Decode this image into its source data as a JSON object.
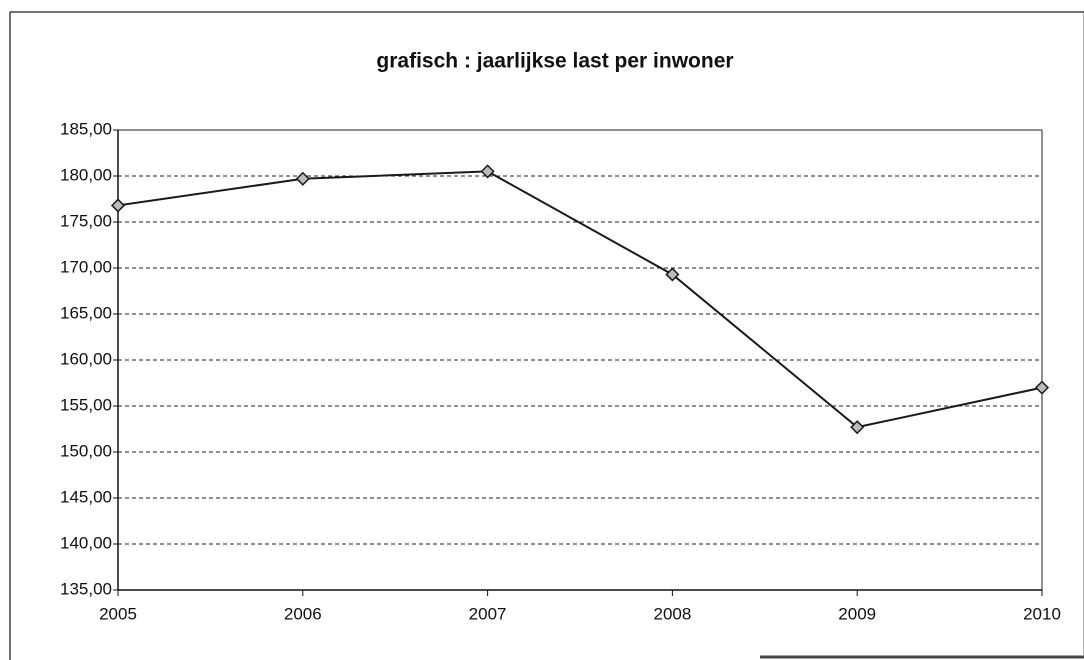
{
  "chart_data": {
    "type": "line",
    "title": "grafisch : jaarlijkse last per inwoner",
    "x": [
      2005,
      2006,
      2007,
      2008,
      2009,
      2010
    ],
    "values": [
      176.8,
      179.7,
      180.5,
      169.3,
      152.7,
      157.0
    ],
    "color": "#1a1a1a",
    "xlim": [
      2005,
      2010
    ],
    "xticks": [
      2005,
      2006,
      2007,
      2008,
      2009,
      2010
    ],
    "ylim": [
      135,
      185
    ],
    "yticks": [
      {
        "value": 135,
        "label": "135,00"
      },
      {
        "value": 140,
        "label": "140,00"
      },
      {
        "value": 145,
        "label": "145,00"
      },
      {
        "value": 150,
        "label": "150,00"
      },
      {
        "value": 155,
        "label": "155,00"
      },
      {
        "value": 160,
        "label": "160,00"
      },
      {
        "value": 165,
        "label": "165,00"
      },
      {
        "value": 170,
        "label": "170,00"
      },
      {
        "value": 175,
        "label": "175,00"
      },
      {
        "value": 180,
        "label": "180,00"
      },
      {
        "value": 185,
        "label": "185,00"
      }
    ],
    "grid": true
  }
}
